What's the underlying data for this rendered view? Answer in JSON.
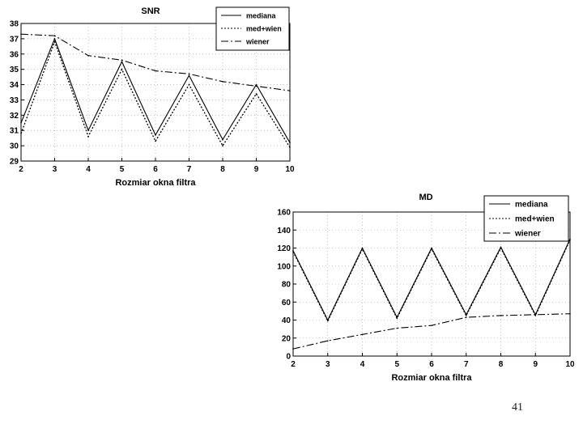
{
  "page_number": "41",
  "chart_data": [
    {
      "type": "line",
      "title": "SNR",
      "xlabel": "Rozmiar okna filtra",
      "ylabel": "",
      "x": [
        2,
        3,
        4,
        5,
        6,
        7,
        8,
        9,
        10
      ],
      "xlim": [
        2,
        10
      ],
      "ylim": [
        29,
        38
      ],
      "yticks": [
        29,
        30,
        31,
        32,
        33,
        34,
        35,
        36,
        37,
        38
      ],
      "grid": true,
      "legend": "top-right",
      "series": [
        {
          "name": "mediana",
          "style": "solid",
          "values": [
            31.5,
            37.0,
            31.0,
            35.5,
            30.7,
            34.6,
            30.4,
            34.0,
            30.2
          ]
        },
        {
          "name": "med+wien",
          "style": "dotted",
          "values": [
            30.8,
            36.8,
            30.6,
            35.0,
            30.3,
            34.0,
            30.0,
            33.4,
            29.9
          ]
        },
        {
          "name": "wiener",
          "style": "dashdot",
          "values": [
            37.3,
            37.2,
            35.9,
            35.6,
            34.9,
            34.7,
            34.2,
            33.9,
            33.6
          ]
        }
      ]
    },
    {
      "type": "line",
      "title": "MD",
      "xlabel": "Rozmiar okna filtra",
      "ylabel": "",
      "x": [
        2,
        3,
        4,
        5,
        6,
        7,
        8,
        9,
        10
      ],
      "xlim": [
        2,
        10
      ],
      "ylim": [
        0,
        160
      ],
      "yticks": [
        0,
        20,
        40,
        60,
        80,
        100,
        120,
        140,
        160
      ],
      "grid": true,
      "legend": "top-right",
      "series": [
        {
          "name": "mediana",
          "style": "solid",
          "values": [
            117,
            40,
            120,
            43,
            120,
            46,
            121,
            46,
            130
          ]
        },
        {
          "name": "med+wien",
          "style": "dotted",
          "values": [
            116,
            39,
            119,
            42,
            119,
            45,
            120,
            45,
            129
          ]
        },
        {
          "name": "wiener",
          "style": "dashdot",
          "values": [
            8,
            17,
            24,
            31,
            34,
            43,
            45,
            46,
            47
          ]
        }
      ]
    }
  ]
}
